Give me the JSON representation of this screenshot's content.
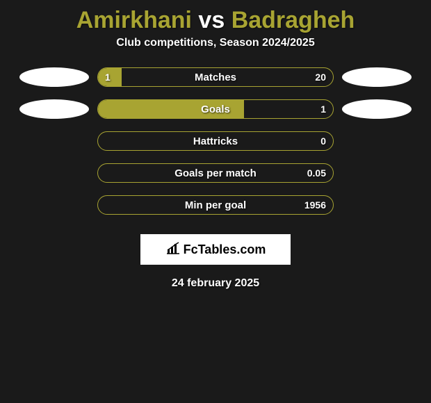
{
  "title": {
    "left": "Amirkhani",
    "vs": " vs ",
    "right": "Badragheh",
    "left_color": "#a8a432",
    "vs_color": "#ffffff",
    "right_color": "#a8a432"
  },
  "subtitle": "Club competitions, Season 2024/2025",
  "colors": {
    "bar_fill": "#a8a432",
    "bar_border": "#a8a432",
    "oval_left": "#ffffff",
    "oval_right": "#ffffff",
    "background": "#1a1a1a"
  },
  "rows": [
    {
      "label": "Matches",
      "left": "1",
      "right": "20",
      "fill_pct": 10,
      "show_ovals": true
    },
    {
      "label": "Goals",
      "left": "",
      "right": "1",
      "fill_pct": 62,
      "show_ovals": true
    },
    {
      "label": "Hattricks",
      "left": "",
      "right": "0",
      "fill_pct": 0,
      "show_ovals": false
    },
    {
      "label": "Goals per match",
      "left": "",
      "right": "0.05",
      "fill_pct": 0,
      "show_ovals": false
    },
    {
      "label": "Min per goal",
      "left": "",
      "right": "1956",
      "fill_pct": 0,
      "show_ovals": false
    }
  ],
  "logo": {
    "text": "FcTables.com",
    "icon": "chart-bars-icon"
  },
  "date": "24 february 2025"
}
